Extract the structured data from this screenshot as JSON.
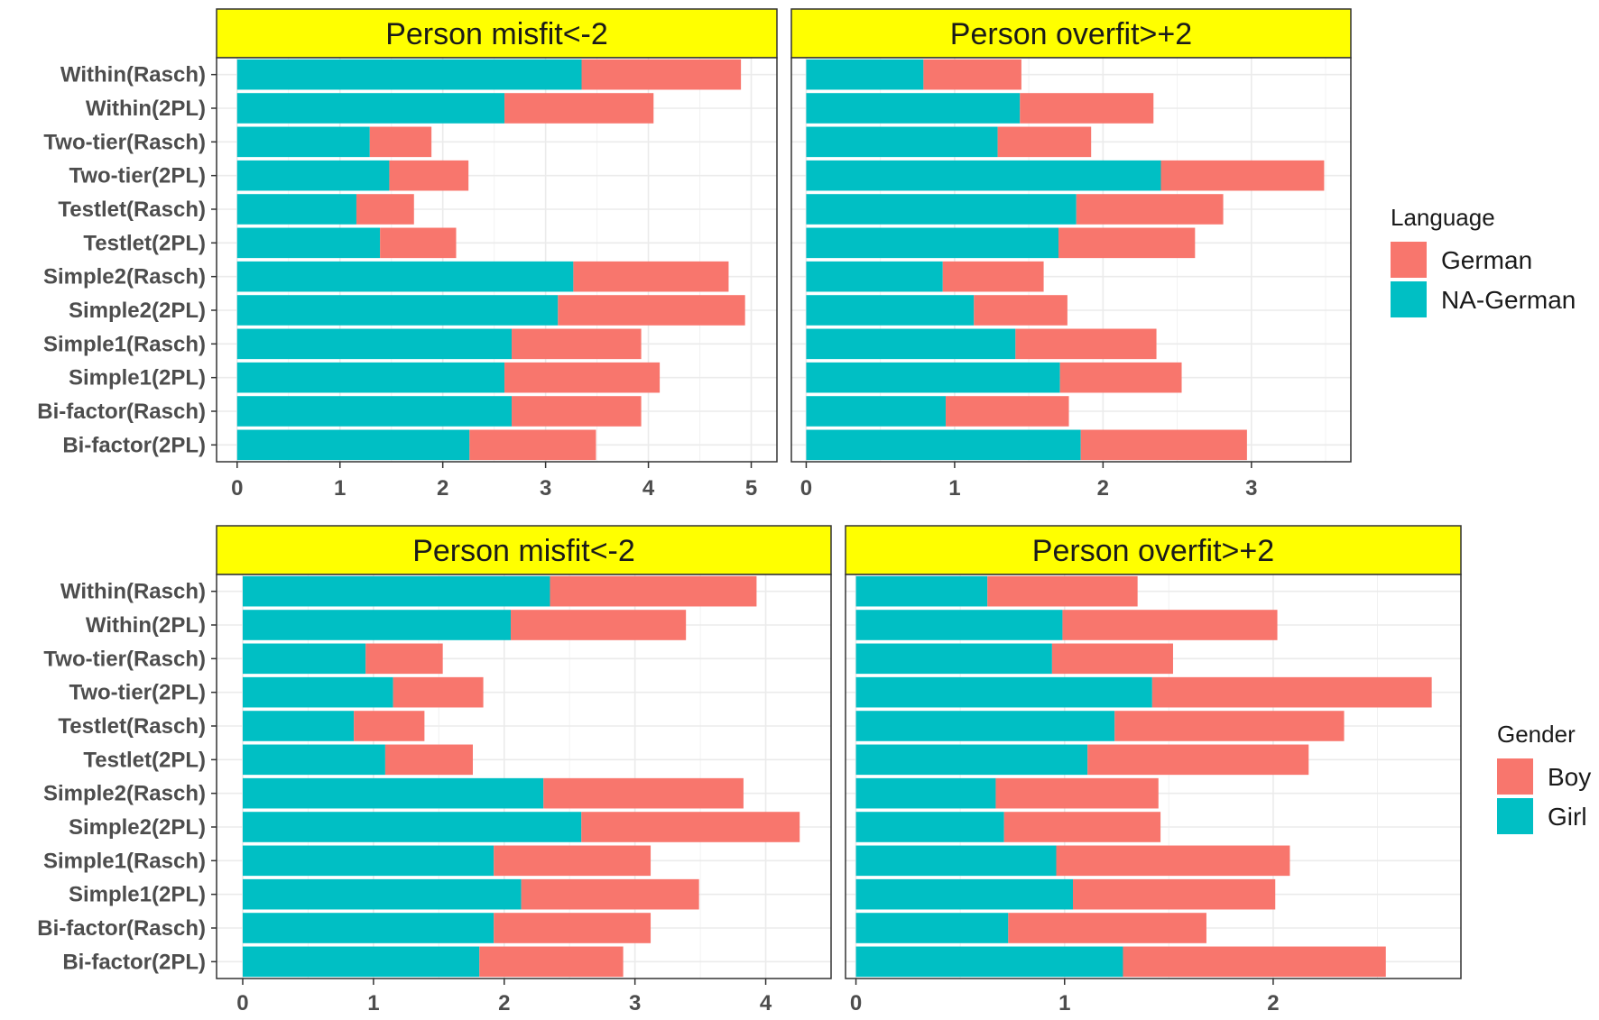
{
  "colors": {
    "primary": "#00BFC4",
    "secondary": "#F8766D",
    "strip": "#FFFF00",
    "grid": "#EBEBEB",
    "text": "#4D4D4D"
  },
  "legends": [
    {
      "title": "Language",
      "items": [
        {
          "label": "German",
          "color": "#F8766D"
        },
        {
          "label": "NA-German",
          "color": "#00BFC4"
        }
      ]
    },
    {
      "title": "Gender",
      "items": [
        {
          "label": "Boy",
          "color": "#F8766D"
        },
        {
          "label": "Girl",
          "color": "#00BFC4"
        }
      ]
    }
  ],
  "chart_data": [
    {
      "type": "bar",
      "orientation": "horizontal",
      "stacked": true,
      "grid": true,
      "title": "Person misfit<-2",
      "group": "Language",
      "legend": "Language",
      "categories": [
        "Within(Rasch)",
        "Within(2PL)",
        "Two-tier(Rasch)",
        "Two-tier(2PL)",
        "Testlet(Rasch)",
        "Testlet(2PL)",
        "Simple2(Rasch)",
        "Simple2(2PL)",
        "Simple1(Rasch)",
        "Simple1(2PL)",
        "Bi-factor(Rasch)",
        "Bi-factor(2PL)"
      ],
      "series": [
        {
          "name": "NA-German",
          "values": [
            3.35,
            2.6,
            1.29,
            1.48,
            1.16,
            1.39,
            3.27,
            3.12,
            2.67,
            2.6,
            2.67,
            2.26
          ]
        },
        {
          "name": "German",
          "values": [
            1.55,
            1.45,
            0.6,
            0.77,
            0.56,
            0.74,
            1.51,
            1.82,
            1.26,
            1.51,
            1.26,
            1.23
          ]
        }
      ],
      "xticks": [
        "0",
        "1",
        "2",
        "3",
        "4",
        "5"
      ],
      "xlim": [
        -0.2,
        5.25
      ]
    },
    {
      "type": "bar",
      "orientation": "horizontal",
      "stacked": true,
      "grid": true,
      "title": "Person overfit>+2",
      "group": "Language",
      "legend": "Language",
      "categories": [
        "Within(Rasch)",
        "Within(2PL)",
        "Two-tier(Rasch)",
        "Two-tier(2PL)",
        "Testlet(Rasch)",
        "Testlet(2PL)",
        "Simple2(Rasch)",
        "Simple2(2PL)",
        "Simple1(Rasch)",
        "Simple1(2PL)",
        "Bi-factor(Rasch)",
        "Bi-factor(2PL)"
      ],
      "series": [
        {
          "name": "NA-German",
          "values": [
            0.79,
            1.44,
            1.29,
            2.39,
            1.82,
            1.7,
            0.92,
            1.13,
            1.41,
            1.71,
            0.94,
            1.85
          ]
        },
        {
          "name": "German",
          "values": [
            0.66,
            0.9,
            0.63,
            1.1,
            0.99,
            0.92,
            0.68,
            0.63,
            0.95,
            0.82,
            0.83,
            1.12
          ]
        }
      ],
      "xticks": [
        "0",
        "1",
        "2",
        "3"
      ],
      "xlim": [
        -0.1,
        3.67
      ]
    },
    {
      "type": "bar",
      "orientation": "horizontal",
      "stacked": true,
      "grid": true,
      "title": "Person misfit<-2",
      "group": "Gender",
      "legend": "Gender",
      "categories": [
        "Within(Rasch)",
        "Within(2PL)",
        "Two-tier(Rasch)",
        "Two-tier(2PL)",
        "Testlet(Rasch)",
        "Testlet(2PL)",
        "Simple2(Rasch)",
        "Simple2(2PL)",
        "Simple1(Rasch)",
        "Simple1(2PL)",
        "Bi-factor(Rasch)",
        "Bi-factor(2PL)"
      ],
      "series": [
        {
          "name": "Girl",
          "values": [
            2.35,
            2.05,
            0.94,
            1.15,
            0.85,
            1.09,
            2.3,
            2.59,
            1.92,
            2.13,
            1.92,
            1.81
          ]
        },
        {
          "name": "Boy",
          "values": [
            1.58,
            1.34,
            0.59,
            0.69,
            0.54,
            0.67,
            1.53,
            1.67,
            1.2,
            1.36,
            1.2,
            1.1
          ]
        }
      ],
      "xticks": [
        "0",
        "1",
        "2",
        "3",
        "4"
      ],
      "xlim": [
        -0.2,
        4.5
      ]
    },
    {
      "type": "bar",
      "orientation": "horizontal",
      "stacked": true,
      "grid": true,
      "title": "Person overfit>+2",
      "group": "Gender",
      "legend": "Gender",
      "categories": [
        "Within(Rasch)",
        "Within(2PL)",
        "Two-tier(Rasch)",
        "Two-tier(2PL)",
        "Testlet(Rasch)",
        "Testlet(2PL)",
        "Simple2(Rasch)",
        "Simple2(2PL)",
        "Simple1(Rasch)",
        "Simple1(2PL)",
        "Bi-factor(Rasch)",
        "Bi-factor(2PL)"
      ],
      "series": [
        {
          "name": "Girl",
          "values": [
            0.63,
            0.99,
            0.94,
            1.42,
            1.24,
            1.11,
            0.67,
            0.71,
            0.96,
            1.04,
            0.73,
            1.28
          ]
        },
        {
          "name": "Boy",
          "values": [
            0.72,
            1.03,
            0.58,
            1.34,
            1.1,
            1.06,
            0.78,
            0.75,
            1.12,
            0.97,
            0.95,
            1.26
          ]
        }
      ],
      "xticks": [
        "0",
        "1",
        "2"
      ],
      "xlim": [
        -0.05,
        2.9
      ]
    }
  ]
}
